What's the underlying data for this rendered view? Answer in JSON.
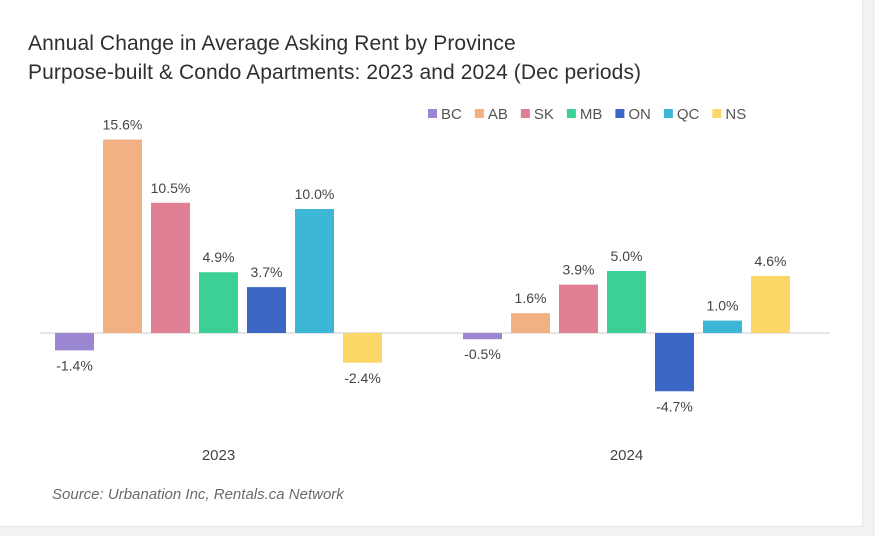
{
  "chart_data": {
    "type": "bar",
    "title": "Annual Change in Average Asking Rent by Province",
    "subtitle": "Purpose-built & Condo Apartments: 2023 and 2024 (Dec periods)",
    "categories": [
      "2023",
      "2024"
    ],
    "series": [
      {
        "name": "BC",
        "color": "#9b87d1",
        "values": [
          -1.4,
          -0.5
        ],
        "labels": [
          "-1.4%",
          "-0.5%"
        ]
      },
      {
        "name": "AB",
        "color": "#f2b183",
        "values": [
          15.6,
          1.6
        ],
        "labels": [
          "15.6%",
          "1.6%"
        ]
      },
      {
        "name": "SK",
        "color": "#e07f93",
        "values": [
          10.5,
          3.9
        ],
        "labels": [
          "10.5%",
          "3.9%"
        ]
      },
      {
        "name": "MB",
        "color": "#3ccf96",
        "values": [
          4.9,
          5.0
        ],
        "labels": [
          "4.9%",
          "5.0%"
        ]
      },
      {
        "name": "ON",
        "color": "#3d67c4",
        "values": [
          3.7,
          -4.7
        ],
        "labels": [
          "3.7%",
          "-4.7%"
        ]
      },
      {
        "name": "QC",
        "color": "#3eb6d6",
        "values": [
          10.0,
          1.0
        ],
        "labels": [
          "10.0%",
          "1.0%"
        ]
      },
      {
        "name": "NS",
        "color": "#fbd767",
        "values": [
          -2.4,
          4.6
        ],
        "labels": [
          "-2.4%",
          "4.6%"
        ]
      }
    ],
    "legend_position": "top-right",
    "grid": false,
    "source": "Source: Urbanation Inc, Rentals.ca Network"
  }
}
